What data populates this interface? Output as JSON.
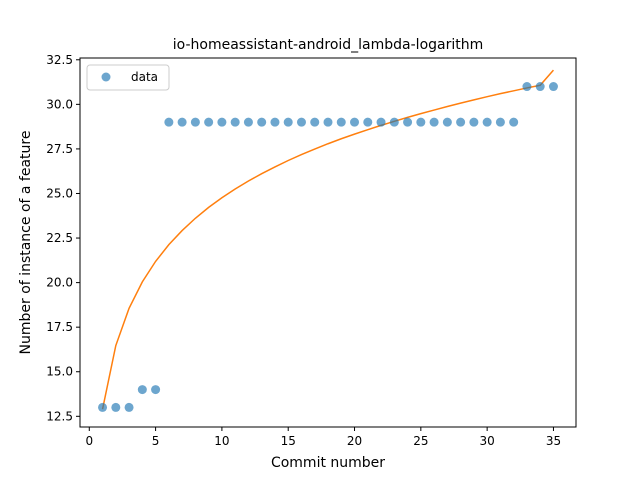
{
  "chart_data": {
    "type": "scatter",
    "title": "io-homeassistant-android_lambda-logarithm",
    "xlabel": "Commit number",
    "ylabel": "Number of instance of a feature",
    "xlim": [
      -0.7,
      36.7
    ],
    "ylim": [
      11.9,
      32.6
    ],
    "xticks": [
      0,
      5,
      10,
      15,
      20,
      25,
      30,
      35
    ],
    "yticks": [
      12.5,
      15.0,
      17.5,
      20.0,
      22.5,
      25.0,
      27.5,
      30.0,
      32.5
    ],
    "xtick_labels": [
      "0",
      "5",
      "10",
      "15",
      "20",
      "25",
      "30",
      "35"
    ],
    "ytick_labels": [
      "12.5",
      "15.0",
      "17.5",
      "20.0",
      "22.5",
      "25.0",
      "27.5",
      "30.0",
      "32.5"
    ],
    "grid": false,
    "legend": {
      "position": "top-left",
      "entries": [
        "data"
      ]
    },
    "colors": {
      "data": "#1f77b4",
      "fit": "#ff7f0e"
    },
    "series": [
      {
        "name": "data",
        "kind": "scatter",
        "x": [
          1,
          2,
          3,
          4,
          5,
          6,
          7,
          8,
          9,
          10,
          11,
          12,
          13,
          14,
          15,
          16,
          17,
          18,
          19,
          20,
          21,
          22,
          23,
          24,
          25,
          26,
          27,
          28,
          29,
          30,
          31,
          32,
          33,
          34,
          35
        ],
        "y": [
          13,
          13,
          13,
          14,
          14,
          29,
          29,
          29,
          29,
          29,
          29,
          29,
          29,
          29,
          29,
          29,
          29,
          29,
          29,
          29,
          29,
          29,
          29,
          29,
          29,
          29,
          29,
          29,
          29,
          29,
          29,
          29,
          31,
          31,
          31
        ]
      },
      {
        "kind": "line",
        "x": [
          1,
          2,
          3,
          4,
          5,
          6,
          7,
          8,
          9,
          10,
          11,
          12,
          13,
          14,
          15,
          16,
          17,
          18,
          19,
          20,
          21,
          22,
          23,
          24,
          25,
          26,
          27,
          28,
          29,
          30,
          31,
          32,
          33,
          34,
          35
        ],
        "y": [
          12.9,
          16.47,
          18.56,
          20.04,
          21.19,
          22.13,
          22.92,
          23.61,
          24.22,
          24.76,
          25.25,
          25.7,
          26.11,
          26.49,
          26.85,
          27.18,
          27.49,
          27.79,
          28.07,
          28.33,
          28.58,
          28.82,
          29.05,
          29.27,
          29.48,
          29.68,
          29.88,
          30.07,
          30.25,
          30.43,
          30.6,
          30.76,
          30.92,
          31.07,
          31.92
        ]
      }
    ]
  }
}
